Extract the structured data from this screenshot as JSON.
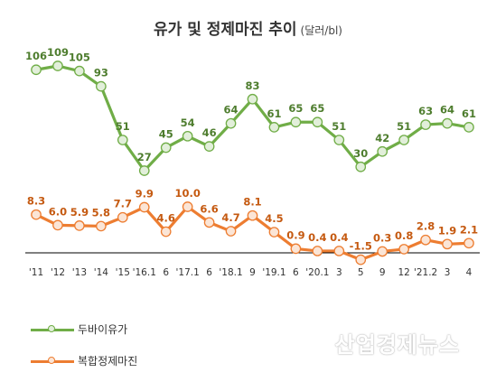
{
  "title": "유가 및 정제마진 추이",
  "subtitle": "(달러/bl)",
  "watermark": "산업경제뉴스",
  "colors": {
    "oil_line": "#70AD47",
    "oil_marker_fill": "#E2EFDA",
    "oil_label": "#4E7D2E",
    "margin_line": "#ED7D31",
    "margin_marker_fill": "#FBE5D6",
    "margin_label": "#C55A11",
    "axis": "#000000",
    "tick_text": "#333333"
  },
  "chart_data": {
    "type": "line",
    "categories": [
      "'11",
      "'12",
      "'13",
      "'14",
      "'15",
      "'16.1",
      "6",
      "'17.1",
      "6",
      "'18.1",
      "9",
      "'19.1",
      "6",
      "'20.1",
      "3",
      "5",
      "9",
      "12",
      "'21.2",
      "3",
      "4"
    ],
    "series": [
      {
        "name": "두바이유가",
        "values": [
          106,
          109,
          105,
          93,
          51,
          27,
          45,
          54,
          46,
          64,
          83,
          61,
          65,
          65,
          51,
          30,
          42,
          51,
          63,
          64,
          61
        ],
        "labels": [
          "106",
          "109",
          "105",
          "93",
          "51",
          "27",
          "45",
          "54",
          "46",
          "64",
          "83",
          "61",
          "65",
          "65",
          "51",
          "30",
          "42",
          "51",
          "63",
          "64",
          "61"
        ]
      },
      {
        "name": "복합정제마진",
        "values": [
          8.3,
          6.0,
          5.9,
          5.8,
          7.7,
          9.9,
          4.6,
          10.0,
          6.6,
          4.7,
          8.1,
          4.5,
          0.9,
          0.4,
          0.4,
          -1.5,
          0.3,
          0.8,
          2.8,
          1.9,
          2.1
        ],
        "labels": [
          "8.3",
          "6.0",
          "5.9",
          "5.8",
          "7.7",
          "9.9",
          "4.6",
          "10.0",
          "6.6",
          "4.7",
          "8.1",
          "4.5",
          "0.9",
          "0.4",
          "0.4",
          "-1.5",
          "0.3",
          "0.8",
          "2.8",
          "1.9",
          "2.1"
        ]
      }
    ],
    "legend_position": "bottom-left",
    "grid": false
  }
}
